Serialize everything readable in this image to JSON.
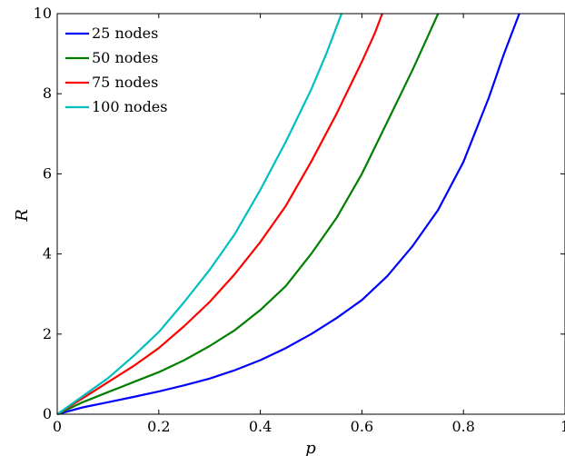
{
  "chart_data": {
    "type": "line",
    "title": "",
    "xlabel": "p",
    "ylabel": "R",
    "xlim": [
      0,
      1
    ],
    "ylim": [
      0,
      10
    ],
    "xticks": [
      0,
      0.2,
      0.4,
      0.6,
      0.8,
      1
    ],
    "xtick_labels": [
      "0",
      "0.2",
      "0.4",
      "0.6",
      "0.8",
      "1"
    ],
    "yticks": [
      0,
      2,
      4,
      6,
      8,
      10
    ],
    "ytick_labels": [
      "0",
      "2",
      "4",
      "6",
      "8",
      "10"
    ],
    "grid": false,
    "legend_position": "top-left",
    "series": [
      {
        "name": "25 nodes",
        "color": "#0000ff",
        "x": [
          0,
          0.05,
          0.1,
          0.15,
          0.2,
          0.25,
          0.3,
          0.35,
          0.4,
          0.45,
          0.5,
          0.55,
          0.6,
          0.65,
          0.7,
          0.75,
          0.8,
          0.85,
          0.88,
          0.91
        ],
        "y": [
          0,
          0.17,
          0.3,
          0.43,
          0.57,
          0.72,
          0.89,
          1.1,
          1.35,
          1.65,
          2.0,
          2.4,
          2.85,
          3.45,
          4.2,
          5.1,
          6.3,
          7.9,
          9.0,
          10.0
        ]
      },
      {
        "name": "50 nodes",
        "color": "#007f00",
        "x": [
          0,
          0.05,
          0.1,
          0.15,
          0.2,
          0.25,
          0.3,
          0.35,
          0.4,
          0.45,
          0.5,
          0.55,
          0.6,
          0.65,
          0.7,
          0.725,
          0.75
        ],
        "y": [
          0,
          0.3,
          0.55,
          0.8,
          1.05,
          1.35,
          1.7,
          2.1,
          2.6,
          3.2,
          4.0,
          4.9,
          6.0,
          7.3,
          8.6,
          9.3,
          10.0
        ]
      },
      {
        "name": "75 nodes",
        "color": "#ff0000",
        "x": [
          0,
          0.05,
          0.1,
          0.15,
          0.2,
          0.25,
          0.3,
          0.35,
          0.4,
          0.45,
          0.5,
          0.55,
          0.6,
          0.625,
          0.64
        ],
        "y": [
          0,
          0.4,
          0.8,
          1.2,
          1.65,
          2.2,
          2.8,
          3.5,
          4.3,
          5.2,
          6.3,
          7.5,
          8.8,
          9.5,
          10.0
        ]
      },
      {
        "name": "100 nodes",
        "color": "#00bfbf",
        "x": [
          0,
          0.05,
          0.1,
          0.15,
          0.2,
          0.25,
          0.3,
          0.35,
          0.4,
          0.45,
          0.5,
          0.53,
          0.56
        ],
        "y": [
          0,
          0.45,
          0.9,
          1.45,
          2.05,
          2.8,
          3.6,
          4.5,
          5.6,
          6.8,
          8.1,
          9.0,
          10.0
        ]
      }
    ]
  }
}
